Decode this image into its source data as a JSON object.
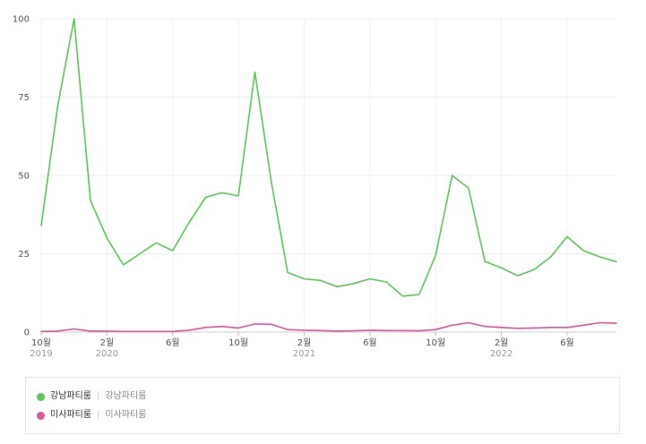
{
  "chart_data": {
    "type": "line",
    "ylim": [
      0,
      100
    ],
    "yticks": [
      0,
      25,
      50,
      75,
      100
    ],
    "ytick_labels": [
      "0",
      "25",
      "50",
      "75",
      "100"
    ],
    "grid": true,
    "x": [
      "2019-10",
      "2019-11",
      "2019-12",
      "2020-01",
      "2020-02",
      "2020-03",
      "2020-04",
      "2020-05",
      "2020-06",
      "2020-07",
      "2020-08",
      "2020-09",
      "2020-10",
      "2020-11",
      "2020-12",
      "2021-01",
      "2021-02",
      "2021-03",
      "2021-04",
      "2021-05",
      "2021-06",
      "2021-07",
      "2021-08",
      "2021-09",
      "2021-10",
      "2021-11",
      "2021-12",
      "2022-01",
      "2022-02",
      "2022-03",
      "2022-04",
      "2022-05",
      "2022-06",
      "2022-07",
      "2022-08",
      "2022-09"
    ],
    "xtick_labels": [
      {
        "index": 0,
        "label": "10월",
        "year": "2019"
      },
      {
        "index": 4,
        "label": "2월",
        "year": "2020"
      },
      {
        "index": 8,
        "label": "6월",
        "year": ""
      },
      {
        "index": 12,
        "label": "10월",
        "year": ""
      },
      {
        "index": 16,
        "label": "2월",
        "year": "2021"
      },
      {
        "index": 20,
        "label": "6월",
        "year": ""
      },
      {
        "index": 24,
        "label": "10월",
        "year": ""
      },
      {
        "index": 28,
        "label": "2월",
        "year": "2022"
      },
      {
        "index": 32,
        "label": "6월",
        "year": ""
      }
    ],
    "series": [
      {
        "name": "강남파티룸",
        "color": "#5ac757",
        "values": [
          34,
          72,
          100,
          42,
          30,
          21.5,
          25,
          28.5,
          26,
          35,
          43,
          44.5,
          43.5,
          83,
          48,
          19,
          17,
          16.5,
          14.5,
          15.5,
          17,
          16,
          11.5,
          12,
          24.5,
          50,
          46,
          22.5,
          20.5,
          18,
          20,
          24,
          30.5,
          26,
          24,
          22.5
        ]
      },
      {
        "name": "미사파티룸",
        "color": "#e0559b",
        "values": [
          0.2,
          0.3,
          1,
          0.3,
          0.3,
          0.2,
          0.2,
          0.2,
          0.2,
          0.6,
          1.5,
          1.8,
          1.3,
          2.6,
          2.5,
          0.8,
          0.6,
          0.5,
          0.3,
          0.4,
          0.6,
          0.5,
          0.5,
          0.4,
          0.8,
          2.2,
          3,
          1.8,
          1.5,
          1.2,
          1.3,
          1.5,
          1.5,
          2.2,
          3,
          2.8
        ]
      }
    ]
  },
  "legend": {
    "items": [
      {
        "name": "강남파티룸",
        "sub": "강남파티룸",
        "color": "#5ac757"
      },
      {
        "name": "미사파티룸",
        "sub": "미사파티룸",
        "color": "#e0559b"
      }
    ],
    "separator": "|"
  }
}
